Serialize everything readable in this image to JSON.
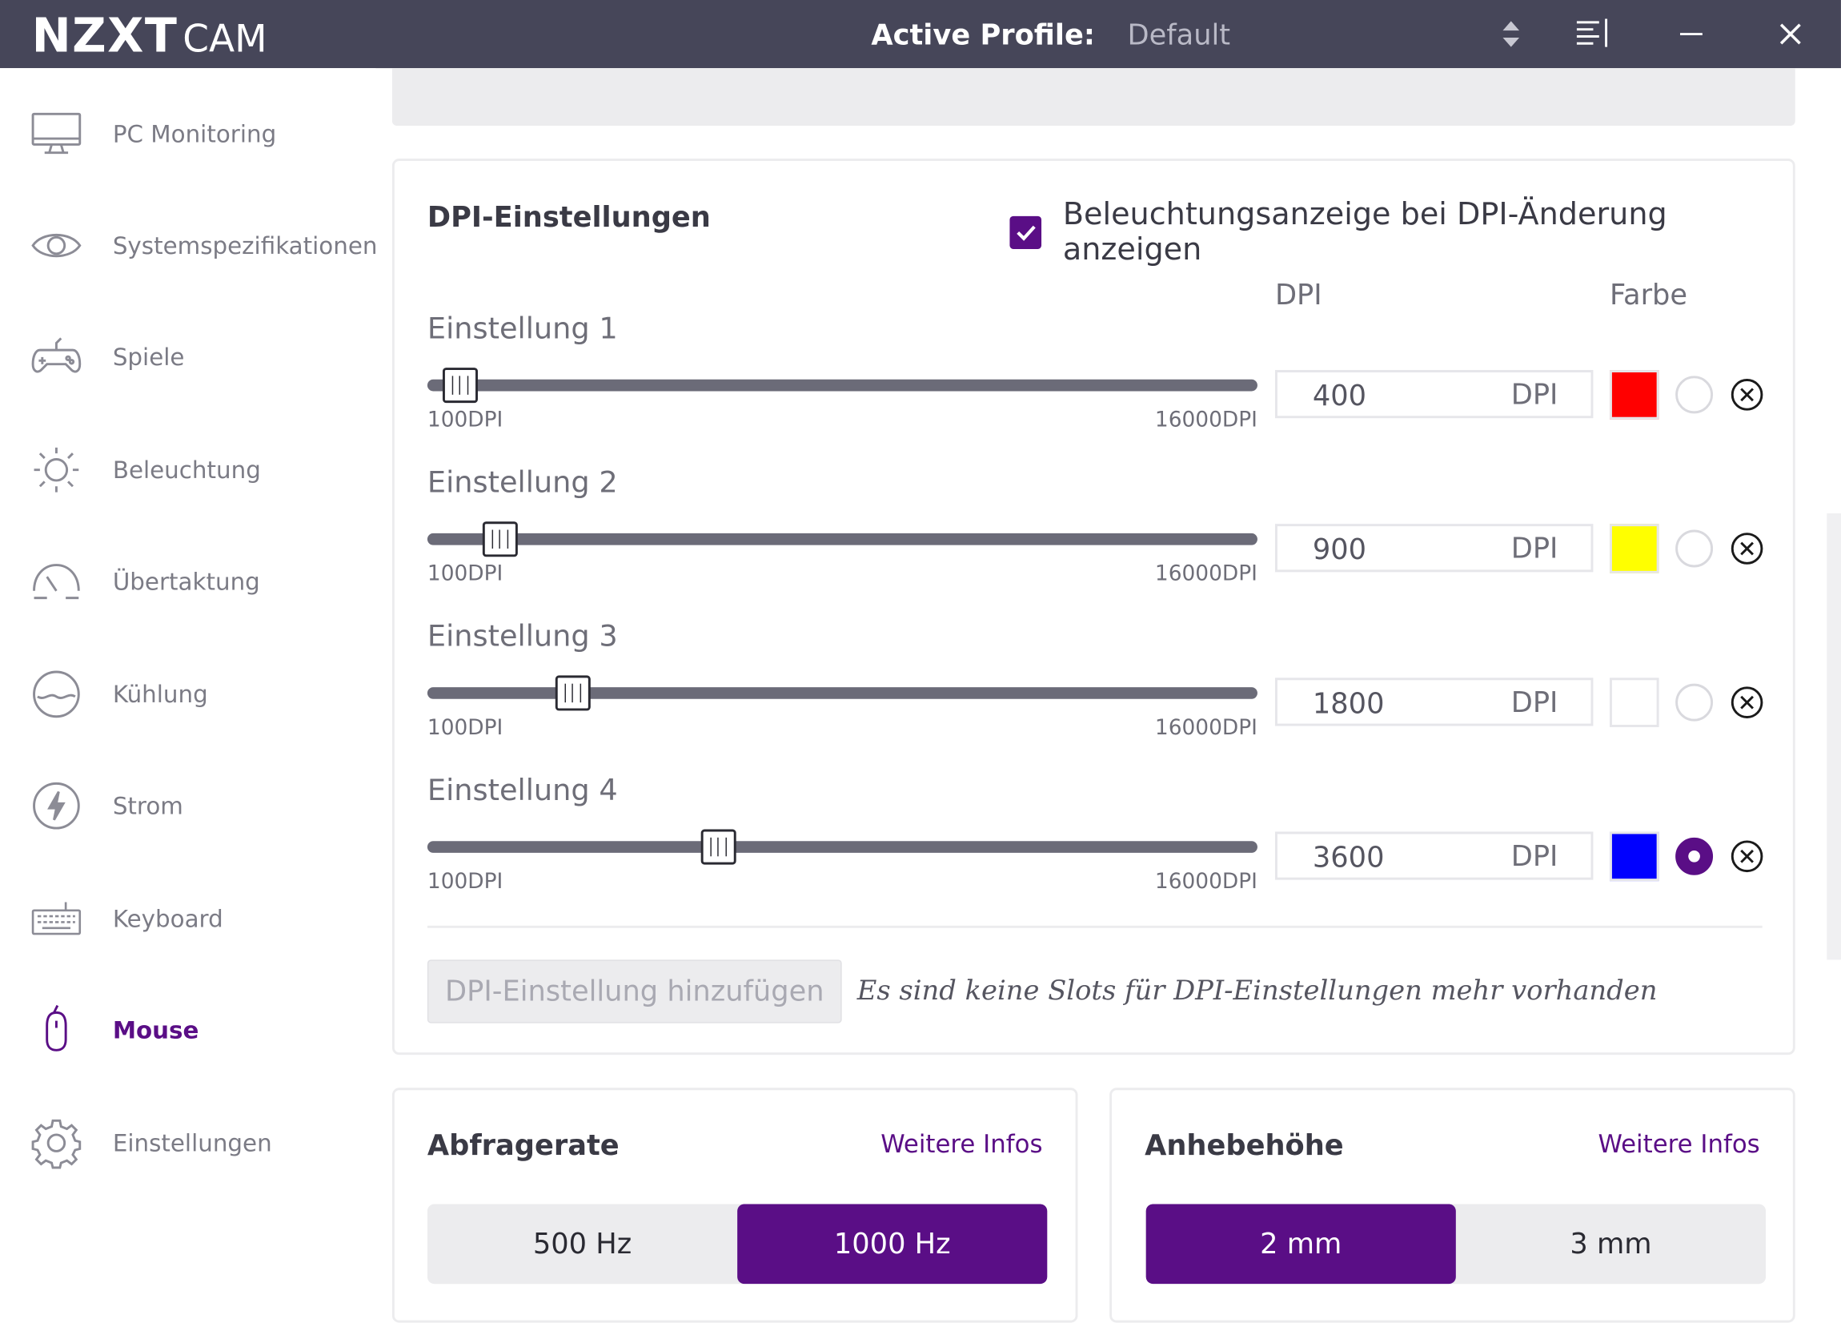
{
  "app": {
    "brand": "NZXT",
    "product": "CAM"
  },
  "header": {
    "profile_label": "Active Profile:",
    "profile_value": "Default"
  },
  "sidebar": {
    "items": [
      {
        "label": "PC Monitoring",
        "icon": "monitor-icon"
      },
      {
        "label": "Systemspezifikationen",
        "icon": "eye-icon"
      },
      {
        "label": "Spiele",
        "icon": "gamepad-icon"
      },
      {
        "label": "Beleuchtung",
        "icon": "sun-icon"
      },
      {
        "label": "Übertaktung",
        "icon": "speedometer-icon"
      },
      {
        "label": "Kühlung",
        "icon": "cooling-icon"
      },
      {
        "label": "Strom",
        "icon": "lightning-icon"
      },
      {
        "label": "Keyboard",
        "icon": "keyboard-icon"
      },
      {
        "label": "Mouse",
        "icon": "mouse-icon",
        "active": true
      },
      {
        "label": "Einstellungen",
        "icon": "gear-icon"
      }
    ]
  },
  "dpi": {
    "title": "DPI-Einstellungen",
    "show_lighting_label": "Beleuchtungsanzeige bei DPI-Änderung anzeigen",
    "show_lighting_checked": true,
    "col_dpi": "DPI",
    "col_color": "Farbe",
    "range_min": "100DPI",
    "range_max": "16000DPI",
    "unit": "DPI",
    "settings": [
      {
        "label": "Einstellung 1",
        "value": "400",
        "color": "#ff0000",
        "selected": false
      },
      {
        "label": "Einstellung 2",
        "value": "900",
        "color": "#ffff00",
        "selected": false
      },
      {
        "label": "Einstellung 3",
        "value": "1800",
        "color": "#ffffff",
        "selected": false
      },
      {
        "label": "Einstellung 4",
        "value": "3600",
        "color": "#0000ff",
        "selected": true
      }
    ],
    "add_button": "DPI-Einstellung hinzufügen",
    "no_slots_text": "Es sind keine Slots für DPI-Einstellungen mehr vorhanden"
  },
  "polling": {
    "title": "Abfragerate",
    "more": "Weitere Infos",
    "options": [
      "500 Hz",
      "1000 Hz"
    ],
    "selected": 1
  },
  "lift": {
    "title": "Anhebehöhe",
    "more": "Weitere Infos",
    "options": [
      "2 mm",
      "3 mm"
    ],
    "selected": 0
  },
  "colors": {
    "accent": "#5a0e86",
    "titlebar": "#464659"
  }
}
